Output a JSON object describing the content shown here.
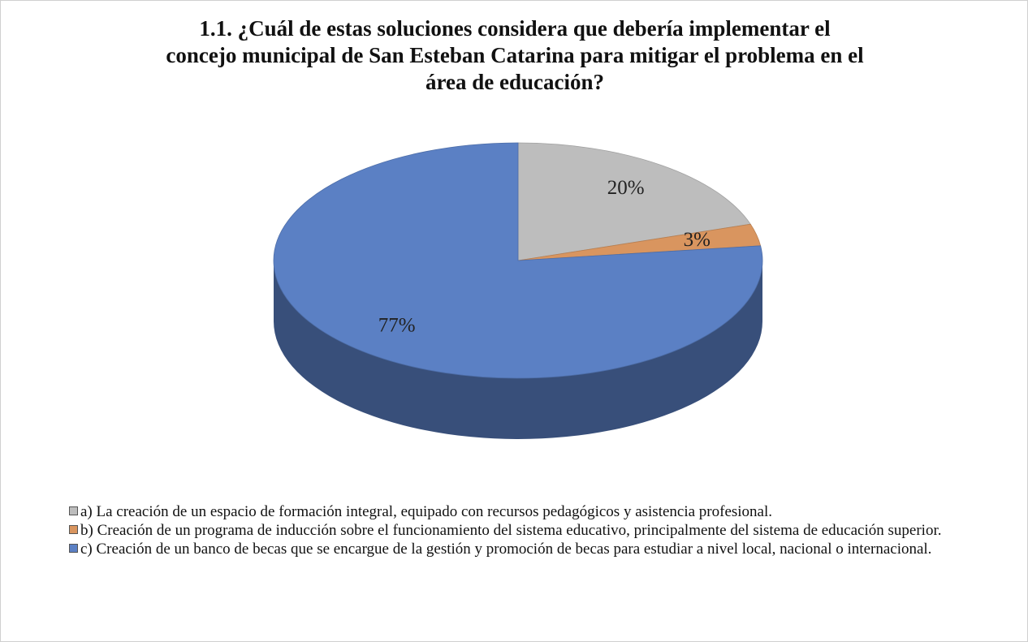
{
  "chart_data": {
    "type": "pie",
    "title": [
      "1.1. ¿Cuál de estas soluciones considera que debería implementar el",
      "concejo municipal de San Esteban Catarina para mitigar el problema en el",
      "área de educación?"
    ],
    "categories": [
      "a) La creación de un espacio de formación integral, equipado con recursos pedagógicos y asistencia profesional.",
      "b) Creación de un programa de inducción sobre el funcionamiento del sistema educativo, principalmente del sistema de educación superior.",
      "c) Creación de un banco de becas que se encargue de la gestión y promoción de becas para estudiar a nivel local, nacional o internacional."
    ],
    "values": [
      20,
      3,
      77
    ],
    "value_labels": [
      "20%",
      "3%",
      "77%"
    ],
    "colors": [
      "#bdbdbd",
      "#d9955f",
      "#5b80c4"
    ],
    "legend": "bottom"
  }
}
